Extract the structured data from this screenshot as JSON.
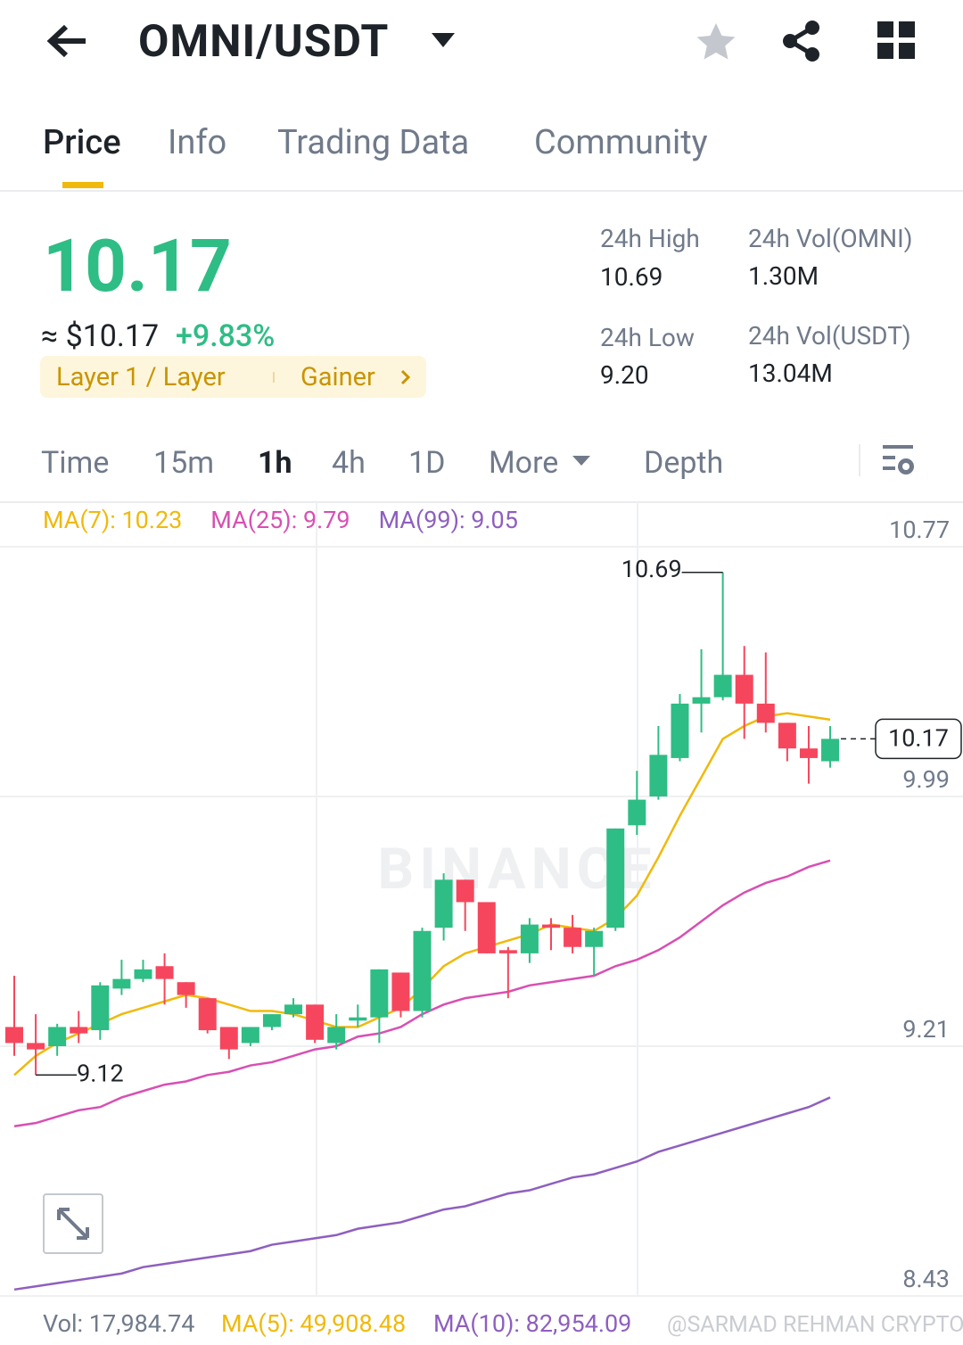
{
  "header": {
    "pair": "OMNI/USDT"
  },
  "tabs": [
    "Price",
    "Info",
    "Trading Data",
    "Community"
  ],
  "price": {
    "last": "10.17",
    "usd": "≈ $10.17",
    "change": "+9.83%",
    "tag": "Layer 1 / Layer",
    "tag2": "Gainer"
  },
  "stats": [
    {
      "label": "24h High",
      "value": "10.69"
    },
    {
      "label": "24h Vol(OMNI)",
      "value": "1.30M"
    },
    {
      "label": "24h Low",
      "value": "9.20"
    },
    {
      "label": "24h Vol(USDT)",
      "value": "13.04M"
    }
  ],
  "intervals": [
    "Time",
    "15m",
    "1h",
    "4h",
    "1D",
    "More",
    "Depth"
  ],
  "chart_data": {
    "type": "candlestick",
    "watermark": "BINANCE",
    "ylim": [
      8.43,
      10.77
    ],
    "yticks": [
      10.77,
      9.99,
      9.21,
      8.43
    ],
    "grid": true,
    "up_color": "#2ebd85",
    "down_color": "#f6465d",
    "open": [
      9.27,
      9.22,
      9.21,
      9.27,
      9.26,
      9.39,
      9.42,
      9.46,
      9.41,
      9.36,
      9.27,
      9.22,
      9.27,
      9.31,
      9.34,
      9.22,
      9.29,
      9.3,
      9.44,
      9.32,
      9.58,
      9.73,
      9.66,
      9.51,
      9.5,
      9.59,
      9.58,
      9.52,
      9.58,
      9.9,
      9.99,
      10.11,
      10.28,
      10.3,
      10.37,
      10.28,
      10.22,
      10.14,
      10.1
    ],
    "high": [
      9.43,
      9.31,
      9.28,
      9.32,
      9.41,
      9.48,
      9.48,
      9.5,
      9.41,
      9.36,
      9.27,
      9.27,
      9.31,
      9.36,
      9.34,
      9.31,
      9.34,
      9.45,
      9.44,
      9.58,
      9.75,
      9.73,
      9.66,
      9.52,
      9.61,
      9.61,
      9.62,
      9.58,
      9.89,
      10.07,
      10.21,
      10.31,
      10.45,
      10.69,
      10.46,
      10.44,
      10.22,
      10.21,
      10.21
    ],
    "low": [
      9.18,
      9.12,
      9.18,
      9.22,
      9.23,
      9.37,
      9.41,
      9.34,
      9.33,
      9.25,
      9.17,
      9.21,
      9.26,
      9.3,
      9.22,
      9.2,
      9.27,
      9.22,
      9.3,
      9.3,
      9.54,
      9.57,
      9.5,
      9.36,
      9.47,
      9.51,
      9.5,
      9.43,
      9.57,
      9.87,
      9.98,
      10.1,
      10.19,
      10.29,
      10.17,
      10.19,
      10.1,
      10.03,
      10.08
    ],
    "close": [
      9.22,
      9.2,
      9.27,
      9.25,
      9.4,
      9.42,
      9.45,
      9.42,
      9.37,
      9.26,
      9.2,
      9.27,
      9.31,
      9.34,
      9.23,
      9.27,
      9.3,
      9.45,
      9.32,
      9.57,
      9.73,
      9.66,
      9.5,
      9.5,
      9.59,
      9.58,
      9.52,
      9.57,
      9.89,
      9.98,
      10.12,
      10.28,
      10.3,
      10.37,
      10.28,
      10.22,
      10.14,
      10.11,
      10.17
    ],
    "series": [
      {
        "name": "MA(7): 10.23",
        "color": "#f0b90b",
        "values": [
          9.12,
          9.18,
          9.22,
          9.25,
          9.28,
          9.31,
          9.33,
          9.35,
          9.37,
          9.36,
          9.34,
          9.32,
          9.32,
          9.31,
          9.29,
          9.27,
          9.27,
          9.3,
          9.33,
          9.39,
          9.46,
          9.5,
          9.52,
          9.54,
          9.56,
          9.59,
          9.58,
          9.57,
          9.61,
          9.68,
          9.8,
          9.93,
          10.05,
          10.17,
          10.21,
          10.24,
          10.25,
          10.24,
          10.23
        ]
      },
      {
        "name": "MA(25): 9.79",
        "color": "#d84fb3",
        "values": [
          8.96,
          8.97,
          8.99,
          9.01,
          9.02,
          9.05,
          9.07,
          9.09,
          9.1,
          9.12,
          9.13,
          9.15,
          9.16,
          9.18,
          9.2,
          9.21,
          9.24,
          9.25,
          9.27,
          9.31,
          9.34,
          9.36,
          9.37,
          9.38,
          9.4,
          9.41,
          9.42,
          9.43,
          9.46,
          9.48,
          9.51,
          9.55,
          9.6,
          9.65,
          9.69,
          9.72,
          9.74,
          9.77,
          9.79
        ]
      },
      {
        "name": "MA(99): 9.05",
        "color": "#8e5fbf",
        "values": [
          8.45,
          8.46,
          8.47,
          8.48,
          8.49,
          8.5,
          8.52,
          8.53,
          8.54,
          8.55,
          8.56,
          8.57,
          8.59,
          8.6,
          8.61,
          8.62,
          8.64,
          8.65,
          8.66,
          8.68,
          8.7,
          8.71,
          8.73,
          8.75,
          8.76,
          8.78,
          8.8,
          8.81,
          8.83,
          8.85,
          8.88,
          8.9,
          8.92,
          8.94,
          8.96,
          8.98,
          9.0,
          9.02,
          9.05
        ]
      }
    ],
    "high_label": "10.69",
    "low_label": "9.12",
    "last_label": "10.17"
  },
  "footer": {
    "vol": "Vol: 17,984.74",
    "ma5": "MA(5): 49,908.48",
    "ma10": "MA(10): 82,954.09",
    "credit": "@SARMAD REHMAN CRYPTO"
  }
}
